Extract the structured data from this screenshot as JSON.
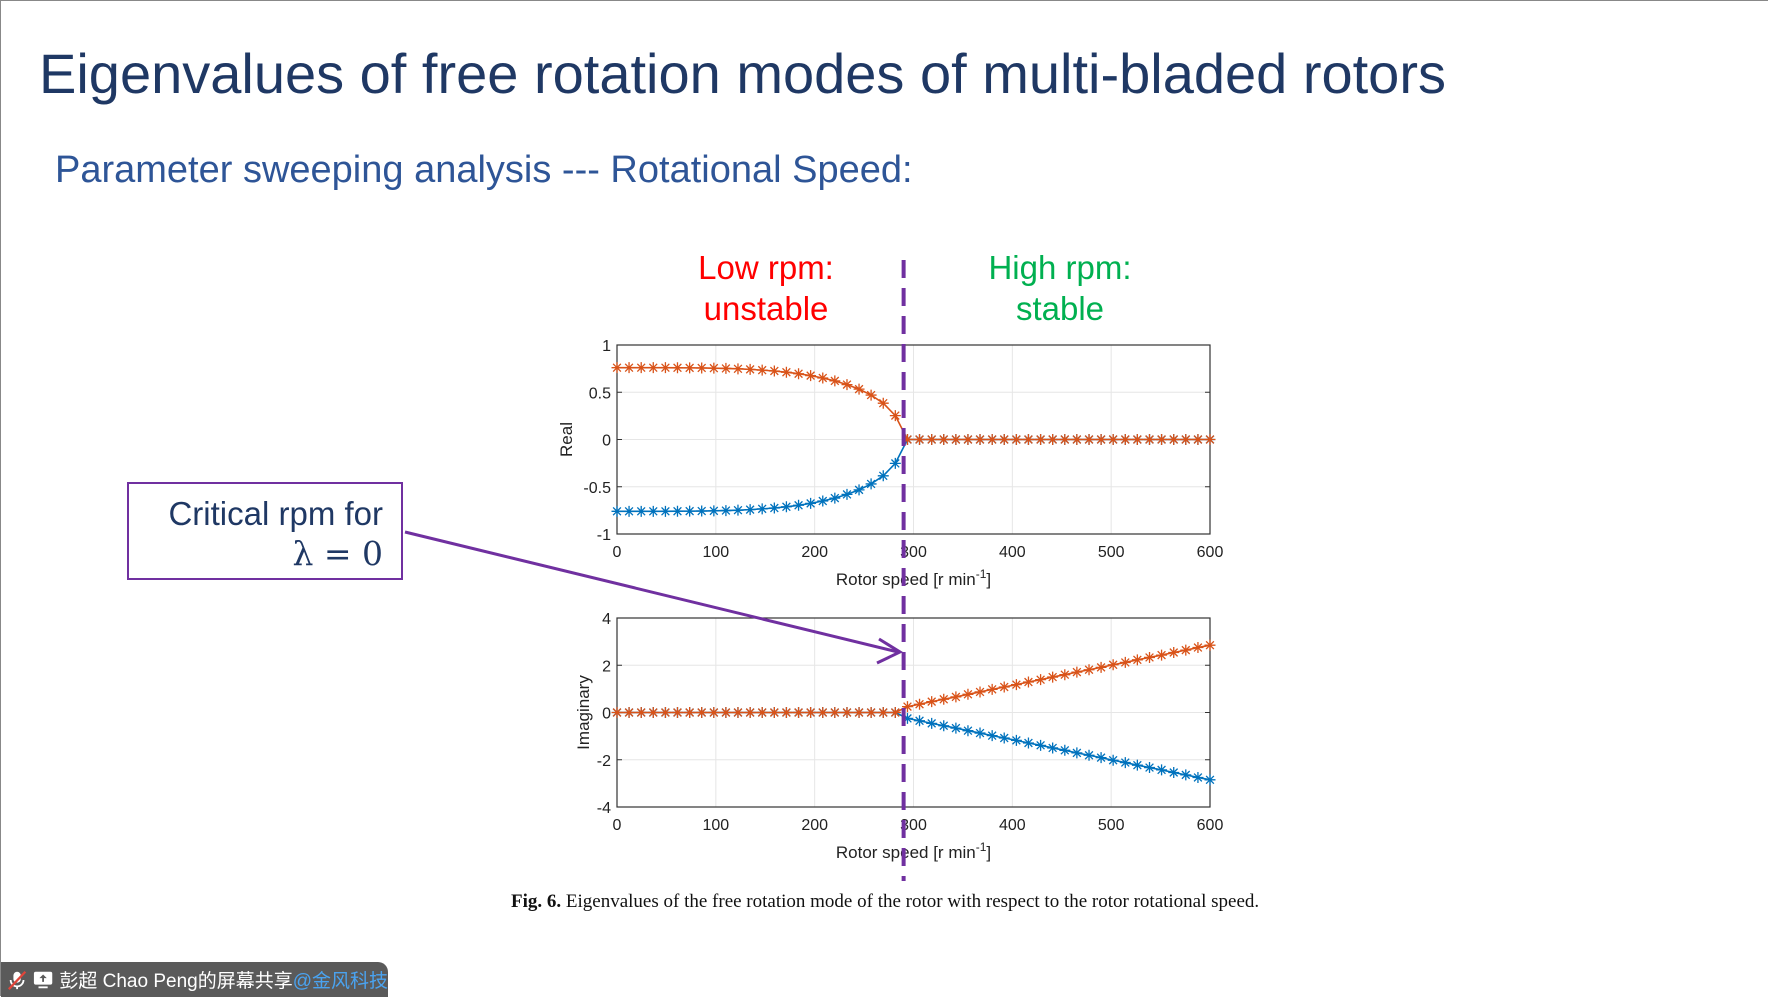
{
  "slide": {
    "title": "Eigenvalues of free rotation modes of multi-bladed rotors",
    "subtitle": "Parameter sweeping analysis --- Rotational Speed:",
    "low_label_1": "Low rpm:",
    "low_label_2": "unstable",
    "high_label_1": "High rpm:",
    "high_label_2": "stable",
    "critical_label_1": "Critical rpm for",
    "critical_label_2": "λ = 0",
    "caption_bold": "Fig. 6.",
    "caption_text": " Eigenvalues of the free rotation mode of the rotor with respect to the rotor rotational speed.",
    "colors": {
      "title": "#1F3864",
      "low": "#FF0000",
      "high": "#00B050",
      "annotation": "#7030A0"
    }
  },
  "share_bar": {
    "mic_icon": "mic-muted-icon",
    "screen_icon": "screen-share-icon",
    "text": "彭超 Chao Peng的屏幕共享",
    "org": "@金风科技"
  },
  "chart_data": [
    {
      "type": "line",
      "ylabel": "Real",
      "xlabel": "Rotor speed [r min",
      "xlabel_sup": "-1",
      "xlabel_end": "]",
      "xlim": [
        0,
        600
      ],
      "ylim": [
        -1,
        1
      ],
      "xticks": [
        "0",
        "100",
        "200",
        "300",
        "400",
        "500",
        "600"
      ],
      "yticks": [
        "1",
        "0.5",
        "0",
        "-0.5",
        "-1"
      ],
      "ytick_values": [
        1,
        0.5,
        0,
        -0.5,
        -1
      ],
      "grid": true,
      "marker": "asterisk",
      "critical_speed": 290,
      "x": [
        0,
        12.2,
        24.5,
        36.7,
        49.0,
        61.2,
        73.5,
        85.7,
        98.0,
        110.2,
        122.4,
        134.7,
        146.9,
        159.2,
        171.4,
        183.7,
        195.9,
        208.2,
        220.4,
        232.7,
        244.9,
        257.1,
        269.4,
        281.6,
        293.9,
        306.1,
        318.4,
        330.6,
        342.9,
        355.1,
        367.3,
        379.6,
        391.8,
        404.1,
        416.3,
        428.6,
        440.8,
        453.1,
        465.3,
        477.6,
        489.8,
        502.0,
        514.3,
        526.5,
        538.8,
        551.0,
        563.3,
        575.5,
        587.8,
        600
      ],
      "series": [
        {
          "color": "#0072BD",
          "values": [
            -0.76,
            -0.76,
            -0.76,
            -0.76,
            -0.76,
            -0.759,
            -0.758,
            -0.757,
            -0.755,
            -0.752,
            -0.748,
            -0.742,
            -0.734,
            -0.725,
            -0.712,
            -0.696,
            -0.676,
            -0.651,
            -0.62,
            -0.581,
            -0.533,
            -0.47,
            -0.384,
            -0.253,
            0,
            0,
            0,
            0,
            0,
            0,
            0,
            0,
            0,
            0,
            0,
            0,
            0,
            0,
            0,
            0,
            0,
            0,
            0,
            0,
            0,
            0,
            0,
            0,
            0,
            0
          ]
        },
        {
          "color": "#D95319",
          "values": [
            0.76,
            0.76,
            0.76,
            0.76,
            0.76,
            0.759,
            0.758,
            0.757,
            0.755,
            0.752,
            0.748,
            0.742,
            0.734,
            0.725,
            0.712,
            0.696,
            0.676,
            0.651,
            0.62,
            0.581,
            0.533,
            0.47,
            0.384,
            0.253,
            0,
            0,
            0,
            0,
            0,
            0,
            0,
            0,
            0,
            0,
            0,
            0,
            0,
            0,
            0,
            0,
            0,
            0,
            0,
            0,
            0,
            0,
            0,
            0,
            0,
            0
          ]
        }
      ]
    },
    {
      "type": "line",
      "ylabel": "Imaginary",
      "xlabel": "Rotor speed [r min",
      "xlabel_sup": "-1",
      "xlabel_end": "]",
      "xlim": [
        0,
        600
      ],
      "ylim": [
        -4,
        4
      ],
      "xticks": [
        "0",
        "100",
        "200",
        "300",
        "400",
        "500",
        "600"
      ],
      "yticks": [
        "4",
        "2",
        "0",
        "-2",
        "-4"
      ],
      "ytick_values": [
        4,
        2,
        0,
        -2,
        -4
      ],
      "grid": true,
      "marker": "asterisk",
      "critical_speed": 290,
      "x": [
        0,
        12.2,
        24.5,
        36.7,
        49.0,
        61.2,
        73.5,
        85.7,
        98.0,
        110.2,
        122.4,
        134.7,
        146.9,
        159.2,
        171.4,
        183.7,
        195.9,
        208.2,
        220.4,
        232.7,
        244.9,
        257.1,
        269.4,
        281.6,
        293.9,
        306.1,
        318.4,
        330.6,
        342.9,
        355.1,
        367.3,
        379.6,
        391.8,
        404.1,
        416.3,
        428.6,
        440.8,
        453.1,
        465.3,
        477.6,
        489.8,
        502.0,
        514.3,
        526.5,
        538.8,
        551.0,
        563.3,
        575.5,
        587.8,
        600
      ],
      "series": [
        {
          "color": "#0072BD",
          "values": [
            0,
            0,
            0,
            0,
            0,
            0,
            0,
            0,
            0,
            0,
            0,
            0,
            0,
            0,
            0,
            0,
            0,
            0,
            0,
            0,
            0,
            0,
            0,
            0,
            -0.25,
            -0.35,
            -0.46,
            -0.56,
            -0.66,
            -0.77,
            -0.87,
            -0.98,
            -1.08,
            -1.18,
            -1.29,
            -1.39,
            -1.5,
            -1.6,
            -1.71,
            -1.81,
            -1.91,
            -2.02,
            -2.12,
            -2.23,
            -2.33,
            -2.43,
            -2.54,
            -2.64,
            -2.75,
            -2.85
          ]
        },
        {
          "color": "#D95319",
          "values": [
            0,
            0,
            0,
            0,
            0,
            0,
            0,
            0,
            0,
            0,
            0,
            0,
            0,
            0,
            0,
            0,
            0,
            0,
            0,
            0,
            0,
            0,
            0,
            0,
            0.25,
            0.35,
            0.46,
            0.56,
            0.66,
            0.77,
            0.87,
            0.98,
            1.08,
            1.18,
            1.29,
            1.39,
            1.5,
            1.6,
            1.71,
            1.81,
            1.91,
            2.02,
            2.12,
            2.23,
            2.33,
            2.43,
            2.54,
            2.64,
            2.75,
            2.85
          ]
        }
      ]
    }
  ]
}
